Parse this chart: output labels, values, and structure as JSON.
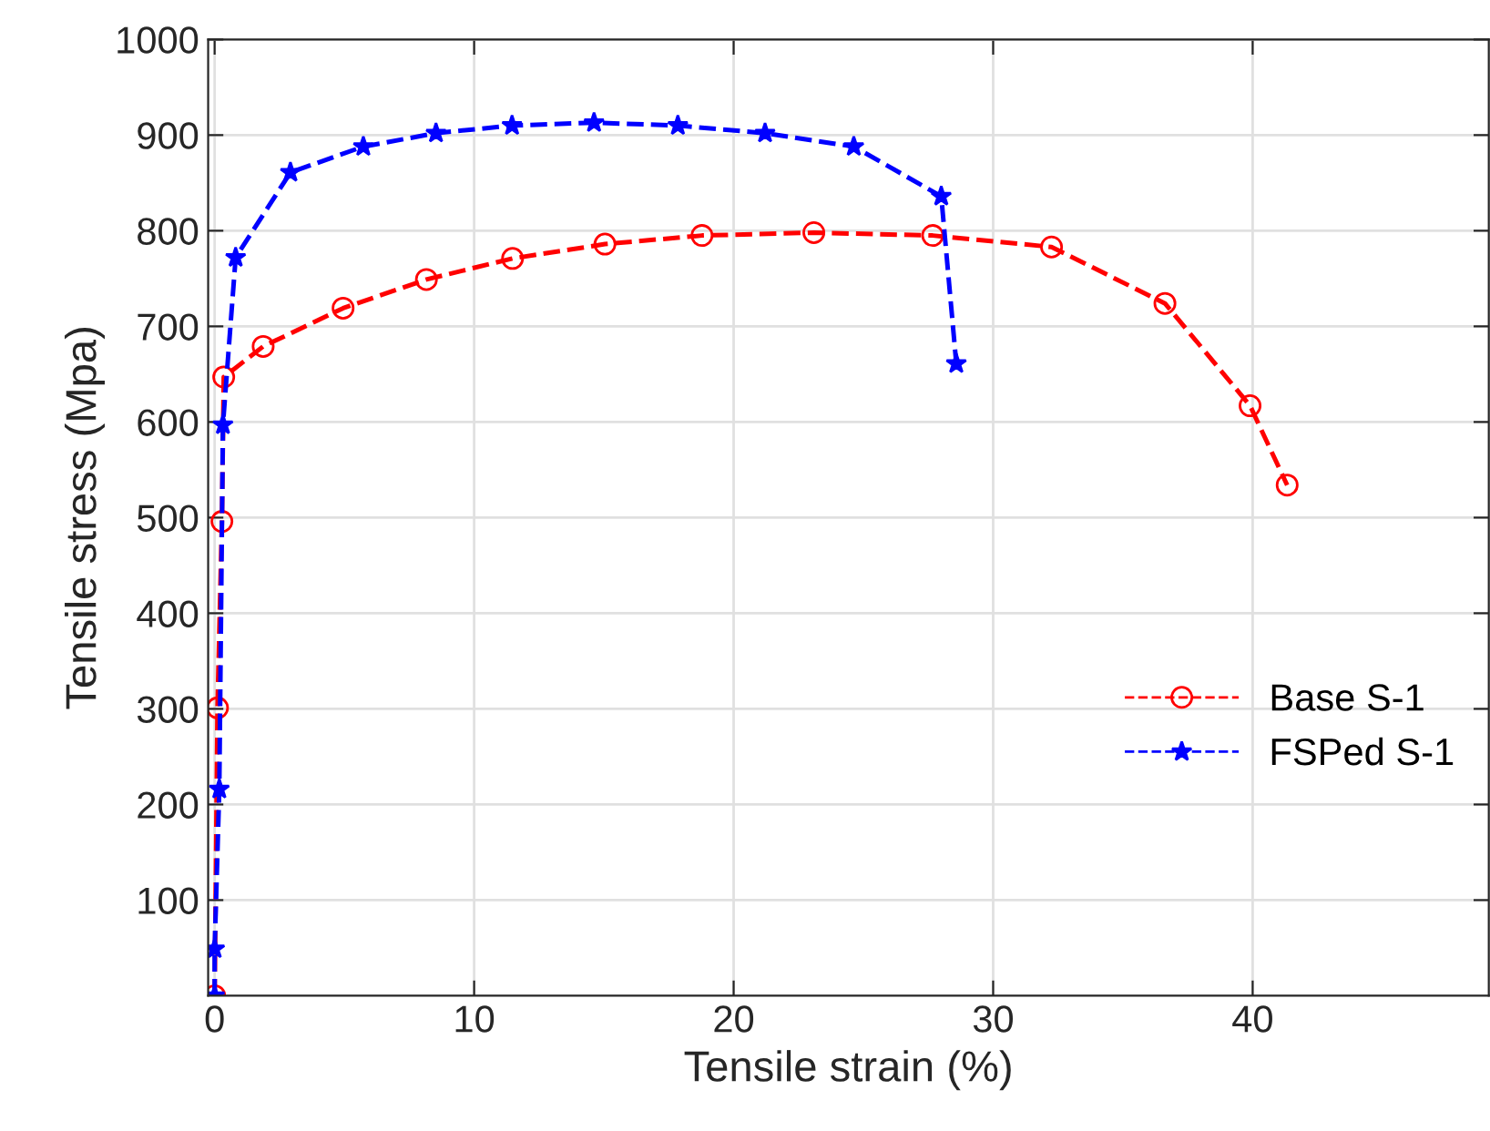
{
  "chart_data": {
    "type": "line",
    "xlabel": "Tensile strain (%)",
    "ylabel": "Tensile stress (Mpa)",
    "xlim": [
      -0.25,
      49.1
    ],
    "xticks": [
      0,
      10,
      20,
      30,
      40
    ],
    "ylim": [
      0,
      1000
    ],
    "yticks": [
      100,
      200,
      300,
      400,
      500,
      600,
      700,
      800,
      900,
      1000
    ],
    "grid": true,
    "legend": "right",
    "line_style": "dashed",
    "series": [
      {
        "name": "Base S-1",
        "color": "#ff0000",
        "marker": "circle",
        "x": [
          0,
          0.11,
          0.28,
          0.35,
          1.87,
          4.95,
          8.16,
          11.48,
          15.04,
          18.78,
          23.09,
          27.67,
          32.25,
          36.62,
          39.9,
          41.33
        ],
        "values": [
          0,
          301,
          496,
          647,
          679,
          719,
          749,
          771,
          786,
          795,
          798,
          795,
          783,
          724,
          617,
          534
        ]
      },
      {
        "name": "FSPed S-1",
        "color": "#0000ff",
        "marker": "star",
        "x": [
          0,
          0,
          0.18,
          0.32,
          0.81,
          2.92,
          5.73,
          8.53,
          11.46,
          14.62,
          17.85,
          21.21,
          24.63,
          28.0,
          28.58
        ],
        "values": [
          0,
          49,
          216,
          597,
          772,
          861,
          888,
          902,
          910,
          913,
          910,
          902,
          888,
          836,
          661
        ]
      }
    ]
  }
}
